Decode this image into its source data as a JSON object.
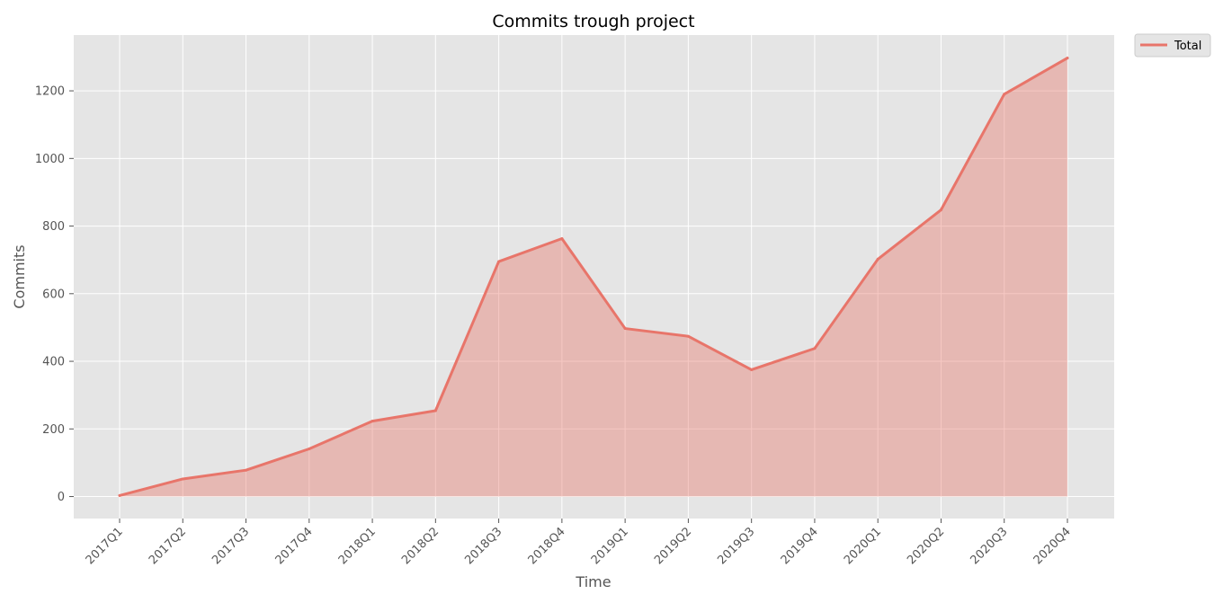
{
  "chart_data": {
    "type": "area",
    "title": "Commits trough project",
    "xlabel": "Time",
    "ylabel": "Commits",
    "categories": [
      "2017Q1",
      "2017Q2",
      "2017Q3",
      "2017Q4",
      "2018Q1",
      "2018Q2",
      "2018Q3",
      "2018Q4",
      "2019Q1",
      "2019Q2",
      "2019Q3",
      "2019Q4",
      "2020Q1",
      "2020Q2",
      "2020Q3",
      "2020Q4"
    ],
    "series": [
      {
        "name": "Total",
        "values": [
          3,
          52,
          78,
          141,
          223,
          254,
          695,
          763,
          497,
          474,
          375,
          438,
          702,
          848,
          1190,
          1297
        ]
      }
    ],
    "ylim": [
      -65,
      1365
    ],
    "yticks": [
      0,
      200,
      400,
      600,
      800,
      1000,
      1200
    ],
    "grid": true,
    "legend_position": "outside-top-right",
    "colors": {
      "line": "#E8756A",
      "fill": "#E8756A",
      "plot_background": "#E5E5E5",
      "grid": "#FFFFFF",
      "text": "#555555"
    }
  }
}
